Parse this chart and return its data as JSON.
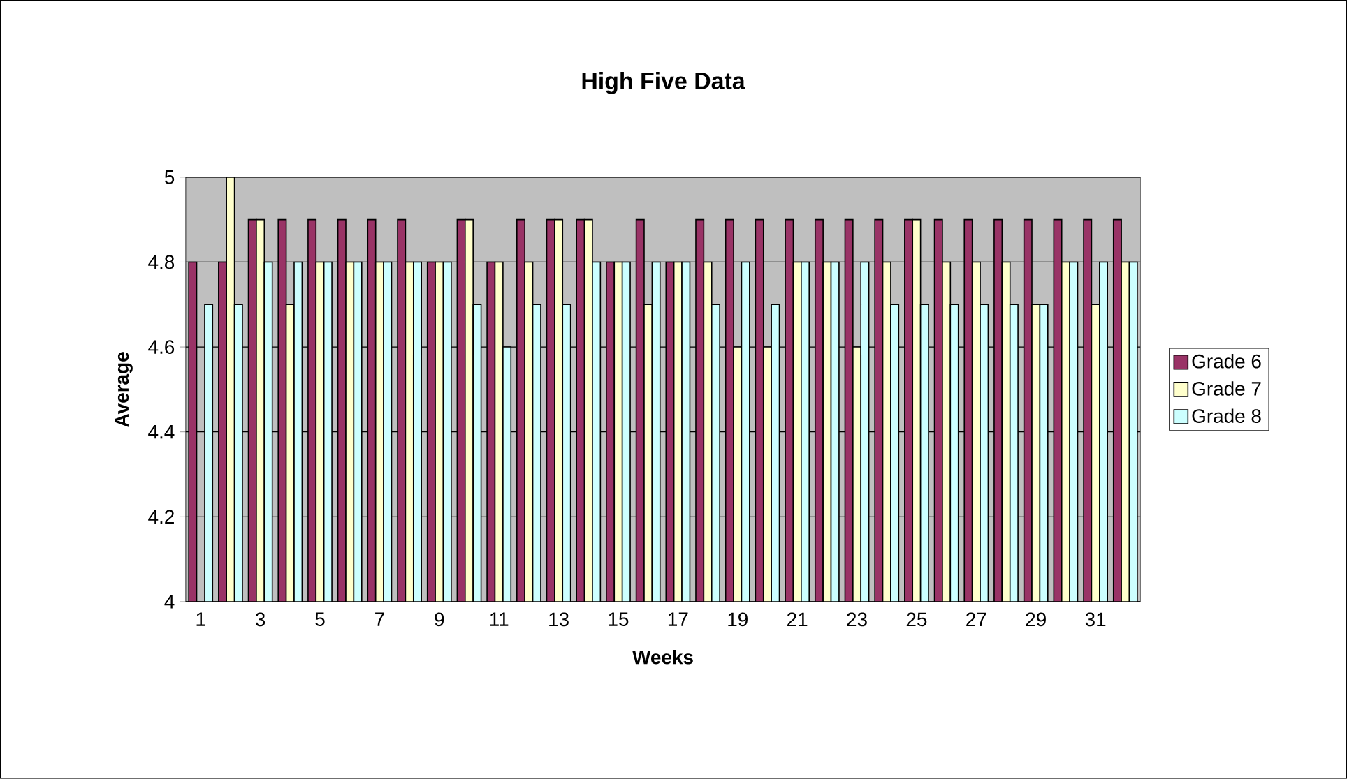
{
  "chart_data": {
    "type": "bar",
    "title": "High Five Data",
    "xlabel": "Weeks",
    "ylabel": "Average",
    "categories": [
      "1",
      null,
      "3",
      null,
      "5",
      null,
      "7",
      null,
      "9",
      null,
      "11",
      null,
      "13",
      null,
      "15",
      null,
      "17",
      null,
      "19",
      null,
      "21",
      null,
      "23",
      null,
      "25",
      null,
      "27",
      null,
      "29",
      null,
      "31",
      null
    ],
    "series": [
      {
        "name": "Grade 6",
        "color": "#993366",
        "values": [
          4.8,
          4.8,
          4.9,
          4.9,
          4.9,
          4.9,
          4.9,
          4.9,
          4.8,
          4.9,
          4.8,
          4.9,
          4.9,
          4.9,
          4.8,
          4.9,
          4.8,
          4.9,
          4.9,
          4.9,
          4.9,
          4.9,
          4.9,
          4.9,
          4.9,
          4.9,
          4.9,
          4.9,
          4.9,
          4.9,
          4.9,
          4.9
        ]
      },
      {
        "name": "Grade 7",
        "color": "#ffffcc",
        "values": [
          null,
          5.0,
          4.9,
          4.7,
          4.8,
          4.8,
          4.8,
          4.8,
          4.8,
          4.9,
          4.8,
          4.8,
          4.9,
          4.9,
          4.8,
          4.7,
          4.8,
          4.8,
          4.6,
          4.6,
          4.8,
          4.8,
          4.6,
          4.8,
          4.9,
          4.8,
          4.8,
          4.8,
          4.7,
          4.8,
          4.7,
          4.8
        ]
      },
      {
        "name": "Grade 8",
        "color": "#ccffff",
        "values": [
          4.7,
          4.7,
          4.8,
          4.8,
          4.8,
          4.8,
          4.8,
          4.8,
          4.8,
          4.7,
          4.6,
          4.7,
          4.7,
          4.8,
          4.8,
          4.8,
          4.8,
          4.7,
          4.8,
          4.7,
          4.8,
          4.8,
          4.8,
          4.7,
          4.7,
          4.7,
          4.7,
          4.7,
          4.7,
          4.8,
          4.8,
          4.8
        ]
      }
    ],
    "ylim": [
      4,
      5
    ],
    "yticks": [
      4,
      4.2,
      4.4,
      4.6,
      4.8,
      5
    ],
    "grid": "y",
    "legend": "right"
  }
}
